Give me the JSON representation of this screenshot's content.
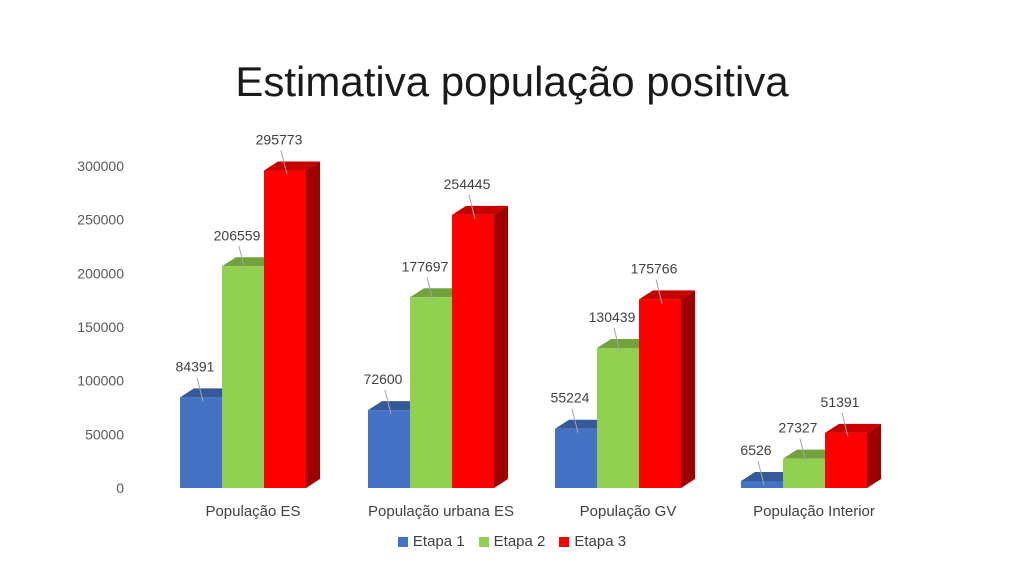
{
  "chart_data": {
    "type": "bar",
    "title": "Estimativa população positiva",
    "categories": [
      "População ES",
      "População urbana ES",
      "População GV",
      "População Interior"
    ],
    "series": [
      {
        "name": "Etapa 1",
        "values": [
          84391,
          72600,
          55224,
          6526
        ],
        "color": "#4472C4"
      },
      {
        "name": "Etapa 2",
        "values": [
          206559,
          177697,
          130439,
          27327
        ],
        "color": "#92D050"
      },
      {
        "name": "Etapa 3",
        "values": [
          295773,
          254445,
          175766,
          51391
        ],
        "color": "#FF0000"
      }
    ],
    "yticks": [
      "0",
      "50000",
      "100000",
      "150000",
      "200000",
      "250000",
      "300000"
    ],
    "ylim": [
      0,
      300000
    ],
    "bar_style": "3d",
    "grid": false,
    "legend_position": "bottom"
  }
}
